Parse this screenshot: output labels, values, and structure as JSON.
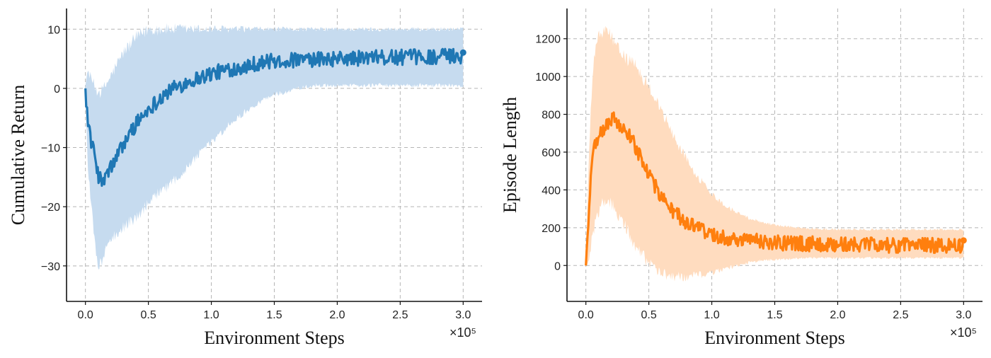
{
  "chart_data": [
    {
      "type": "line",
      "ylabel": "Cumulative Return",
      "xlabel": "Environment Steps",
      "x_multiplier_label": "×10⁵",
      "xlim": [
        -0.15,
        3.15
      ],
      "ylim": [
        -36,
        13.5
      ],
      "xticks": [
        0.0,
        0.5,
        1.0,
        1.5,
        2.0,
        2.5,
        3.0
      ],
      "xtick_labels": [
        "0.0",
        "0.5",
        "1.0",
        "1.5",
        "2.0",
        "2.5",
        "3.0"
      ],
      "yticks": [
        -30,
        -20,
        -10,
        0,
        10
      ],
      "ytick_labels": [
        "−30",
        "−20",
        "−10",
        "0",
        "10"
      ],
      "grid": true,
      "series": [
        {
          "color": "#1f77b4",
          "band_color": "#c6dbef",
          "x": [
            0.0,
            0.02,
            0.05,
            0.08,
            0.1,
            0.13,
            0.16,
            0.2,
            0.25,
            0.3,
            0.4,
            0.5,
            0.6,
            0.7,
            0.8,
            0.9,
            1.0,
            1.1,
            1.2,
            1.3,
            1.4,
            1.5,
            1.6,
            1.7,
            1.8,
            1.9,
            2.0,
            2.2,
            2.4,
            2.6,
            2.8,
            3.0
          ],
          "mean": [
            0.0,
            -5.5,
            -9.5,
            -12.0,
            -14.5,
            -16.0,
            -15.0,
            -13.5,
            -11.5,
            -9.5,
            -6.0,
            -3.5,
            -1.5,
            0.0,
            1.0,
            1.8,
            2.5,
            3.0,
            3.5,
            4.0,
            4.4,
            4.6,
            4.7,
            4.8,
            4.8,
            4.9,
            5.0,
            5.1,
            5.2,
            5.3,
            5.4,
            5.5
          ],
          "lower": [
            0.0,
            -14.0,
            -20.0,
            -27.0,
            -31.0,
            -29.0,
            -27.0,
            -25.5,
            -24.5,
            -23.5,
            -21.5,
            -19.5,
            -17.5,
            -15.5,
            -13.5,
            -11.0,
            -9.0,
            -7.0,
            -5.0,
            -3.5,
            -2.0,
            -1.0,
            -0.5,
            0.0,
            0.5,
            0.5,
            0.5,
            0.5,
            0.5,
            0.5,
            0.5,
            0.5
          ],
          "upper": [
            0.5,
            3.0,
            1.5,
            0.0,
            -0.5,
            -0.5,
            0.5,
            2.0,
            4.0,
            6.0,
            8.5,
            10.0,
            10.0,
            10.0,
            10.0,
            10.0,
            10.0,
            10.0,
            10.0,
            10.0,
            10.0,
            10.0,
            10.0,
            10.0,
            10.0,
            10.0,
            10.0,
            10.0,
            10.0,
            10.0,
            10.0,
            10.0
          ],
          "noise": 1.3
        }
      ]
    },
    {
      "type": "line",
      "ylabel": "Episode Length",
      "xlabel": "Environment Steps",
      "x_multiplier_label": "×10⁵",
      "xlim": [
        -0.15,
        3.15
      ],
      "ylim": [
        -190,
        1360
      ],
      "xticks": [
        0.0,
        0.5,
        1.0,
        1.5,
        2.0,
        2.5,
        3.0
      ],
      "xtick_labels": [
        "0.0",
        "0.5",
        "1.0",
        "1.5",
        "2.0",
        "2.5",
        "3.0"
      ],
      "yticks": [
        0,
        200,
        400,
        600,
        800,
        1000,
        1200
      ],
      "ytick_labels": [
        "0",
        "200",
        "400",
        "600",
        "800",
        "1000",
        "1200"
      ],
      "grid": true,
      "series": [
        {
          "color": "#ff7f0e",
          "band_color": "#ffdcbf",
          "x": [
            0.0,
            0.02,
            0.05,
            0.08,
            0.12,
            0.16,
            0.2,
            0.25,
            0.3,
            0.35,
            0.4,
            0.45,
            0.5,
            0.6,
            0.7,
            0.8,
            0.9,
            1.0,
            1.1,
            1.2,
            1.3,
            1.4,
            1.5,
            1.6,
            1.8,
            2.0,
            2.2,
            2.4,
            2.6,
            2.8,
            3.0
          ],
          "mean": [
            0,
            250,
            560,
            650,
            700,
            740,
            780,
            760,
            720,
            680,
            620,
            560,
            480,
            360,
            280,
            230,
            190,
            165,
            150,
            140,
            132,
            126,
            121,
            118,
            114,
            111,
            109,
            108,
            107,
            106,
            105
          ],
          "lower": [
            0,
            20,
            150,
            250,
            320,
            350,
            330,
            280,
            220,
            160,
            100,
            50,
            10,
            -40,
            -60,
            -60,
            -50,
            -40,
            -20,
            0,
            15,
            25,
            30,
            35,
            40,
            40,
            40,
            40,
            40,
            40,
            40
          ],
          "upper": [
            0,
            500,
            980,
            1180,
            1230,
            1240,
            1220,
            1150,
            1110,
            1080,
            1050,
            1000,
            950,
            820,
            680,
            560,
            460,
            380,
            320,
            280,
            250,
            230,
            215,
            205,
            195,
            190,
            190,
            190,
            190,
            190,
            190
          ],
          "noise": 40
        }
      ]
    }
  ]
}
